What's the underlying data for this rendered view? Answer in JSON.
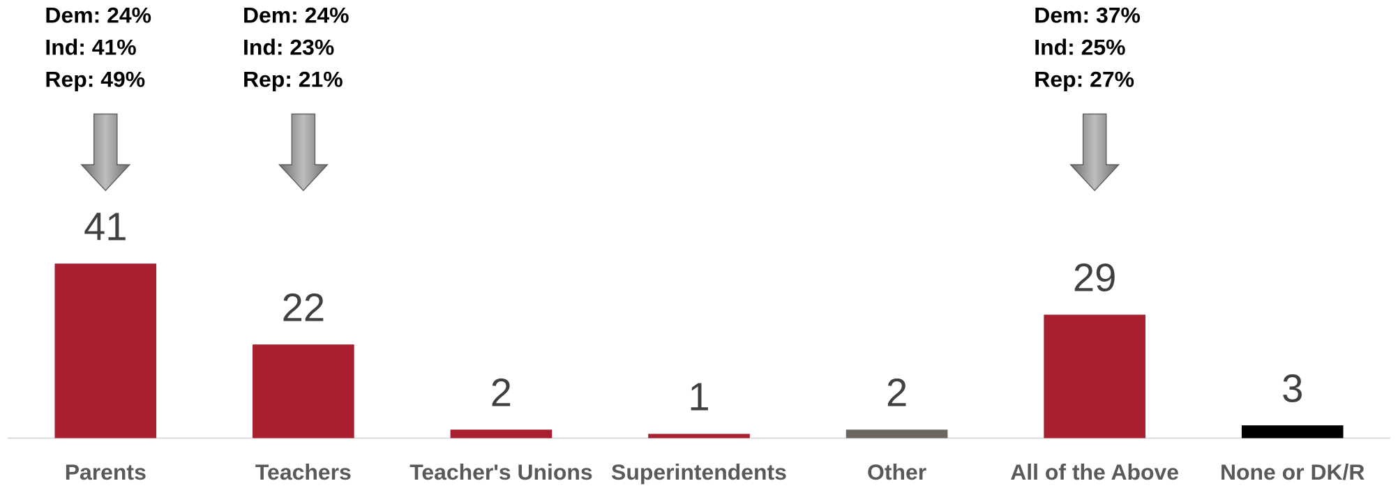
{
  "chart_data": {
    "type": "bar",
    "categories": [
      "Parents",
      "Teachers",
      "Teacher's Unions",
      "Superintendents",
      "Other",
      "All of the Above",
      "None or DK/R"
    ],
    "values": [
      41,
      22,
      2,
      1,
      2,
      29,
      3
    ],
    "colors": [
      "#a8202f",
      "#a8202f",
      "#a8202f",
      "#a8202f",
      "#6b665e",
      "#a8202f",
      "#000000"
    ],
    "annotations": [
      [
        "Dem: 24%",
        "Ind: 41%",
        "Rep: 49%"
      ],
      [
        "Dem: 24%",
        "Ind: 23%",
        "Rep: 21%"
      ],
      null,
      null,
      null,
      [
        "Dem: 37%",
        "Ind: 25%",
        "Rep: 27%"
      ],
      null
    ]
  }
}
